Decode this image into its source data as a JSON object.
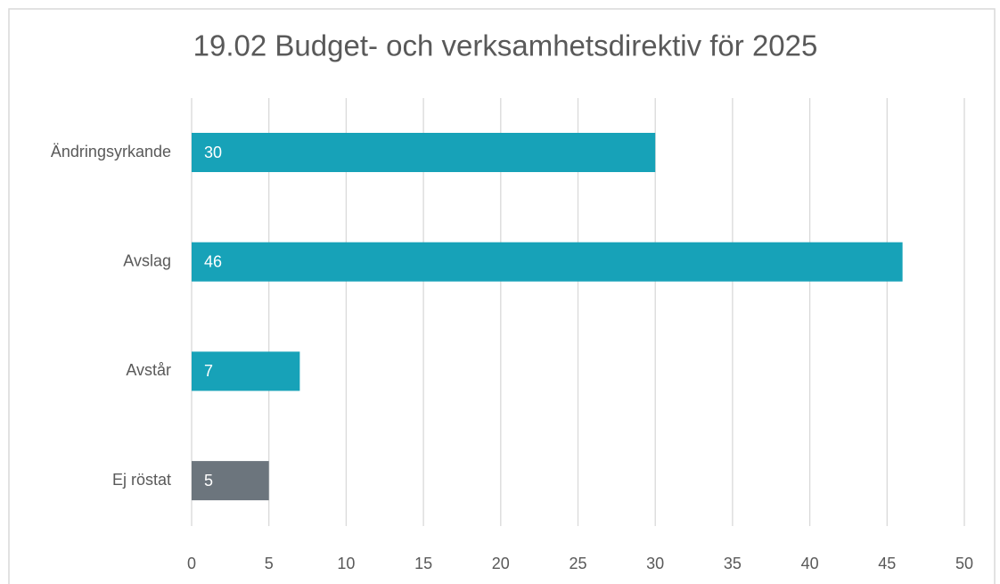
{
  "chart_data": {
    "type": "bar",
    "orientation": "horizontal",
    "title": "19.02 Budget- och verksamhetsdirektiv för 2025",
    "categories": [
      "Ändringsyrkande",
      "Avslag",
      "Avstår",
      "Ej röstat"
    ],
    "values": [
      30,
      46,
      7,
      5
    ],
    "colors": [
      "#17a2b8",
      "#17a2b8",
      "#17a2b8",
      "#6c757d"
    ],
    "xlim": [
      0,
      50
    ],
    "xticks": [
      0,
      5,
      10,
      15,
      20,
      25,
      30,
      35,
      40,
      45,
      50
    ],
    "grid": true,
    "data_labels": true
  }
}
